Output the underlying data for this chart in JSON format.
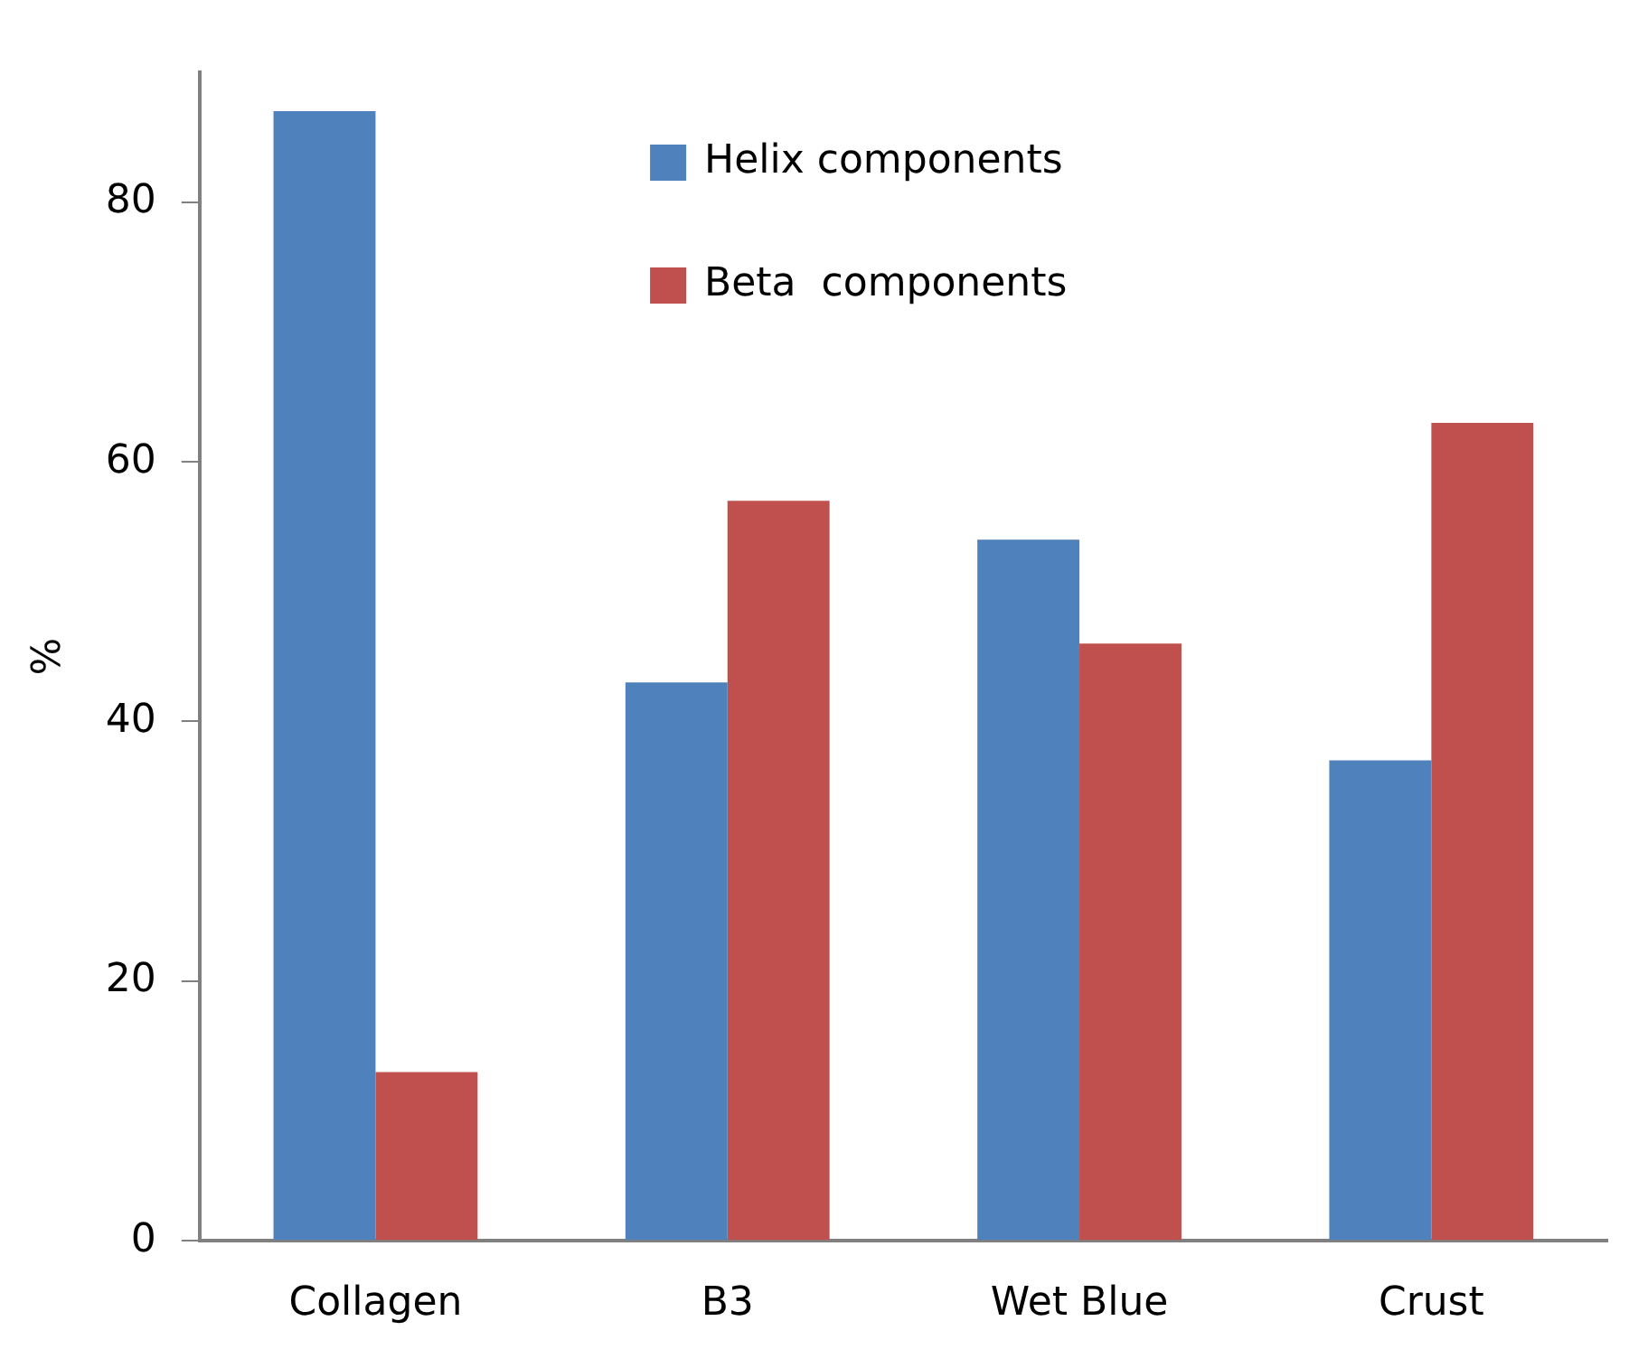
{
  "chart_data": {
    "type": "bar",
    "categories": [
      "Collagen",
      "B3",
      "Wet Blue",
      "Crust"
    ],
    "ylabel": "%",
    "series": [
      {
        "name": "Helix components",
        "color": "#4f81bd",
        "values": [
          87,
          43,
          54,
          37
        ]
      },
      {
        "name": "Beta  components",
        "color": "#c0504d",
        "values": [
          13,
          57,
          46,
          63
        ]
      }
    ],
    "ylim": [
      0,
      90
    ],
    "yticks": [
      0,
      20,
      40,
      60,
      80
    ],
    "grid": false,
    "legend": "top"
  }
}
